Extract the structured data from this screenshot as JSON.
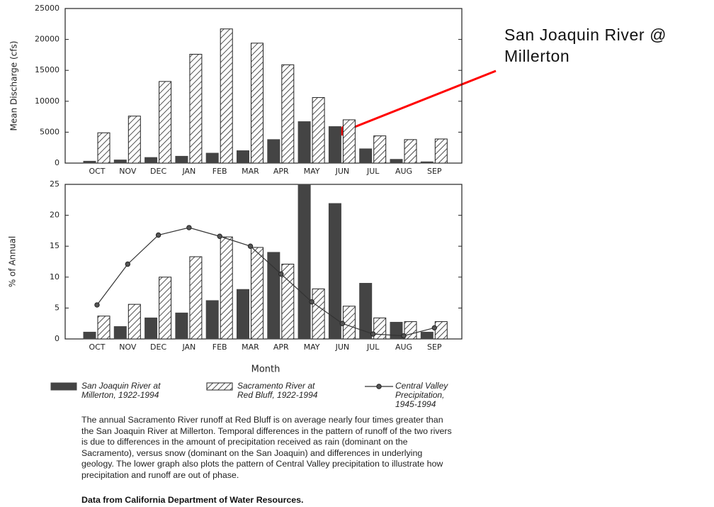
{
  "annotation": "San Joaquin River @ Millerton",
  "caption": "The annual Sacramento River runoff at Red Bluff is on average nearly four times greater than the San Joaquin River at Millerton.  Temporal differences in the pattern of runoff of the two rivers is due to differences in the amount of precipitation received as rain (dominant on the Sacramento), versus snow (dominant on the San Joaquin) and differences in underlying geology. The lower graph also plots the pattern of Central Valley precipitation to illustrate how precipitation and runoff are out of phase.",
  "source": "Data from California Department of Water Resources.",
  "chart_data": [
    {
      "type": "bar",
      "ylabel": "Mean Discharge (cfs)",
      "categories": [
        "OCT",
        "NOV",
        "DEC",
        "JAN",
        "FEB",
        "MAR",
        "APR",
        "MAY",
        "JUN",
        "JUL",
        "AUG",
        "SEP"
      ],
      "series": [
        {
          "color": "#444444",
          "pattern": "solid",
          "values": [
            300,
            500,
            900,
            1100,
            1600,
            2000,
            3800,
            6700,
            5900,
            2300,
            600,
            200
          ]
        },
        {
          "color": "#222222",
          "pattern": "hatch",
          "values": [
            4900,
            7600,
            13200,
            17600,
            21700,
            19400,
            15900,
            10600,
            7000,
            4400,
            3800,
            3900
          ]
        }
      ],
      "ylim": [
        0,
        25000
      ],
      "yticks": [
        0,
        5000,
        10000,
        15000,
        20000,
        25000
      ]
    },
    {
      "type": "bar",
      "ylabel": "% of Annual",
      "xlabel": "Month",
      "categories": [
        "OCT",
        "NOV",
        "DEC",
        "JAN",
        "FEB",
        "MAR",
        "APR",
        "MAY",
        "JUN",
        "JUL",
        "AUG",
        "SEP"
      ],
      "series": [
        {
          "name": "San Joaquin River at Millerton, 1922-1994",
          "color": "#444444",
          "pattern": "solid",
          "values": [
            1.1,
            2.0,
            3.4,
            4.2,
            6.2,
            8.0,
            14.0,
            25.0,
            21.9,
            9.0,
            2.7,
            1.1
          ]
        },
        {
          "name": "Sacramento River at Red Bluff, 1922-1994",
          "color": "#222222",
          "pattern": "hatch",
          "values": [
            3.7,
            5.6,
            10.0,
            13.3,
            16.5,
            14.8,
            12.1,
            8.1,
            5.3,
            3.4,
            2.8,
            2.8
          ]
        },
        {
          "name": "Central Valley Precipitation, 1945-1994",
          "type": "line",
          "color": "#333333",
          "values": [
            5.5,
            12.1,
            16.8,
            18.0,
            16.6,
            15.0,
            10.5,
            6.0,
            2.5,
            0.8,
            0.5,
            1.8
          ]
        }
      ],
      "ylim": [
        0,
        25
      ],
      "yticks": [
        0,
        5,
        10,
        15,
        20,
        25
      ]
    }
  ]
}
